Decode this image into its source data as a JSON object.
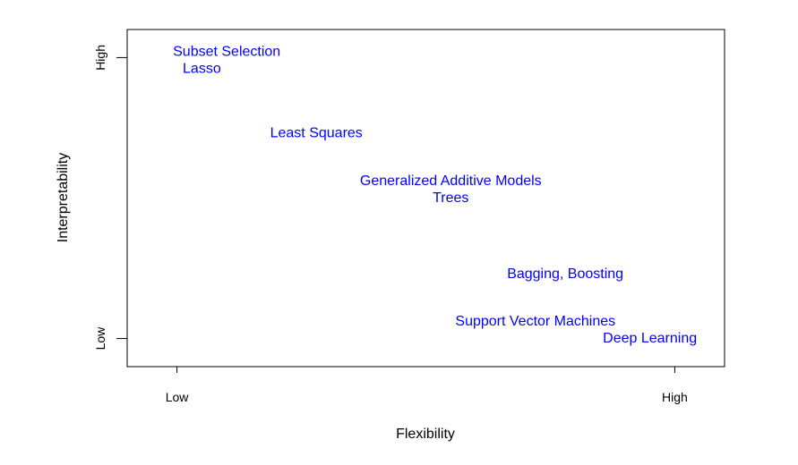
{
  "chart_data": {
    "type": "scatter",
    "title": "",
    "xlabel": "Flexibility",
    "ylabel": "Interpretability",
    "x_ticks": [
      {
        "value": 0,
        "label": "Low"
      },
      {
        "value": 1,
        "label": "High"
      }
    ],
    "y_ticks": [
      {
        "value": 0,
        "label": "Low"
      },
      {
        "value": 1,
        "label": "High"
      }
    ],
    "xlim": [
      -0.1,
      1.1
    ],
    "ylim": [
      -0.1,
      1.1
    ],
    "grid": false,
    "label_color": "#0000ff",
    "points": [
      {
        "x": 0.1,
        "y": 1.02,
        "label": "Subset Selection"
      },
      {
        "x": 0.05,
        "y": 0.96,
        "label": "Lasso"
      },
      {
        "x": 0.28,
        "y": 0.73,
        "label": "Least Squares"
      },
      {
        "x": 0.55,
        "y": 0.56,
        "label": "Generalized Additive Models"
      },
      {
        "x": 0.55,
        "y": 0.5,
        "label": "Trees"
      },
      {
        "x": 0.78,
        "y": 0.23,
        "label": "Bagging, Boosting"
      },
      {
        "x": 0.72,
        "y": 0.06,
        "label": "Support Vector Machines"
      },
      {
        "x": 0.95,
        "y": 0.0,
        "label": "Deep Learning"
      }
    ]
  }
}
